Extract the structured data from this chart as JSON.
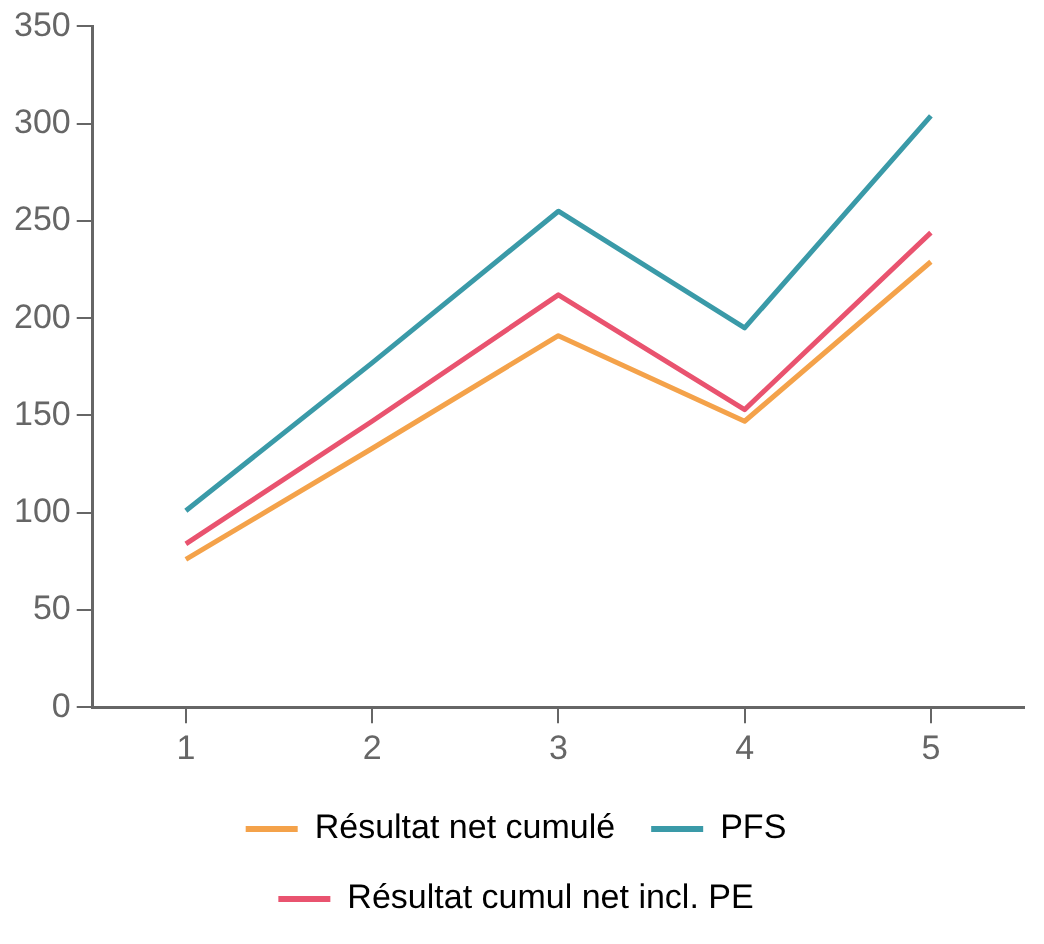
{
  "chart_data": {
    "type": "line",
    "x": [
      1,
      2,
      3,
      4,
      5
    ],
    "xlim": [
      0.5,
      5.5
    ],
    "xticks": [
      1,
      2,
      3,
      4,
      5
    ],
    "ylim": [
      0,
      350
    ],
    "yticks": [
      0,
      50,
      100,
      150,
      200,
      250,
      300,
      350
    ],
    "grid": false,
    "legend": "bottom",
    "marker": "none",
    "line_style": "solid",
    "series": [
      {
        "name": "Résultat net cumulé",
        "color": "#f4a24a",
        "values": [
          76,
          133,
          191,
          147,
          229
        ]
      },
      {
        "name": "PFS",
        "color": "#3a9aa8",
        "values": [
          101,
          177,
          255,
          195,
          304
        ]
      },
      {
        "name": "Résultat cumul net incl. PE",
        "color": "#e9536f",
        "values": [
          84,
          147,
          212,
          153,
          244
        ]
      }
    ]
  }
}
